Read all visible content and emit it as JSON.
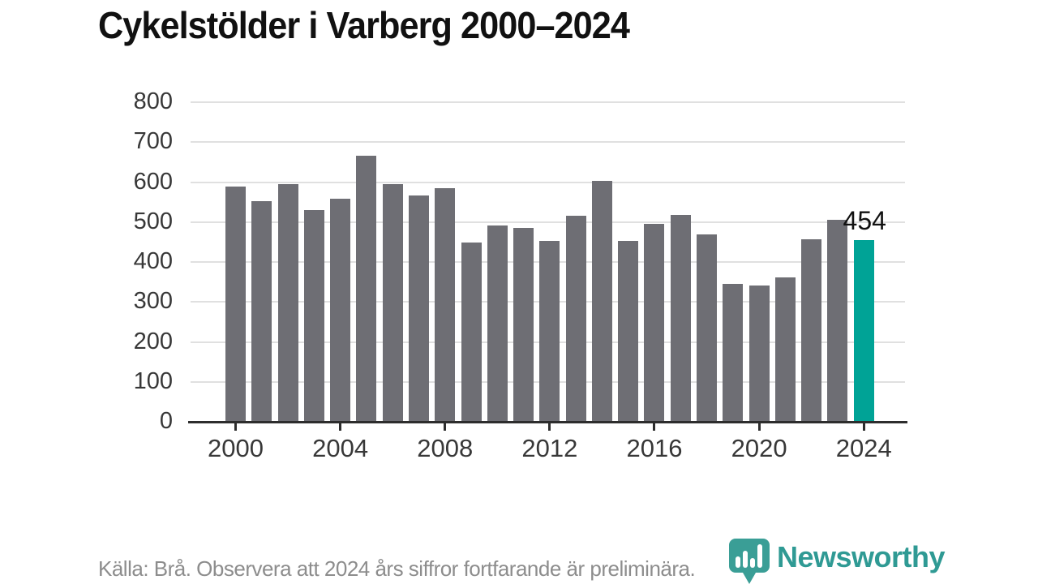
{
  "header": {
    "title": "Cykelstölder i Varberg 2000–2024"
  },
  "chart_data": {
    "type": "bar",
    "title": "Cykelstölder i Varberg 2000–2024",
    "categories": [
      "2000",
      "2001",
      "2002",
      "2003",
      "2004",
      "2005",
      "2006",
      "2007",
      "2008",
      "2009",
      "2010",
      "2011",
      "2012",
      "2013",
      "2014",
      "2015",
      "2016",
      "2017",
      "2018",
      "2019",
      "2020",
      "2021",
      "2022",
      "2023",
      "2024"
    ],
    "values": [
      588,
      553,
      595,
      530,
      559,
      667,
      594,
      567,
      585,
      448,
      492,
      485,
      452,
      515,
      604,
      453,
      495,
      518,
      470,
      346,
      341,
      362,
      456,
      506,
      454
    ],
    "highlight_category": "2024",
    "highlight_index": 24,
    "highlight_value_label": "454",
    "ylim": [
      0,
      800
    ],
    "y_ticks": [
      0,
      100,
      200,
      300,
      400,
      500,
      600,
      700,
      800
    ],
    "x_tick_labels": [
      "2000",
      "2004",
      "2008",
      "2012",
      "2016",
      "2020",
      "2024"
    ],
    "x_tick_indices": [
      0,
      4,
      8,
      12,
      16,
      20,
      24
    ],
    "grid": "horizontal-only",
    "legend": "none",
    "xlabel": "",
    "ylabel": "",
    "colors": {
      "bar": "#6e6e74",
      "highlight": "#00a396",
      "gridline": "#e0e0e0",
      "axis": "#2d2d2d",
      "tick_label": "#383838"
    }
  },
  "footer": {
    "source_text": "Källa: Brå. Observera att 2024 års siffror fortfarande är preliminära.",
    "text_color": "#8d8d8d"
  },
  "branding": {
    "logo_text": "Newsworthy",
    "logo_text_color": "#2f9a94",
    "logo_icon_color": "#3a9e96",
    "logo_icon": "newsworthy-pin-barchart-icon"
  }
}
